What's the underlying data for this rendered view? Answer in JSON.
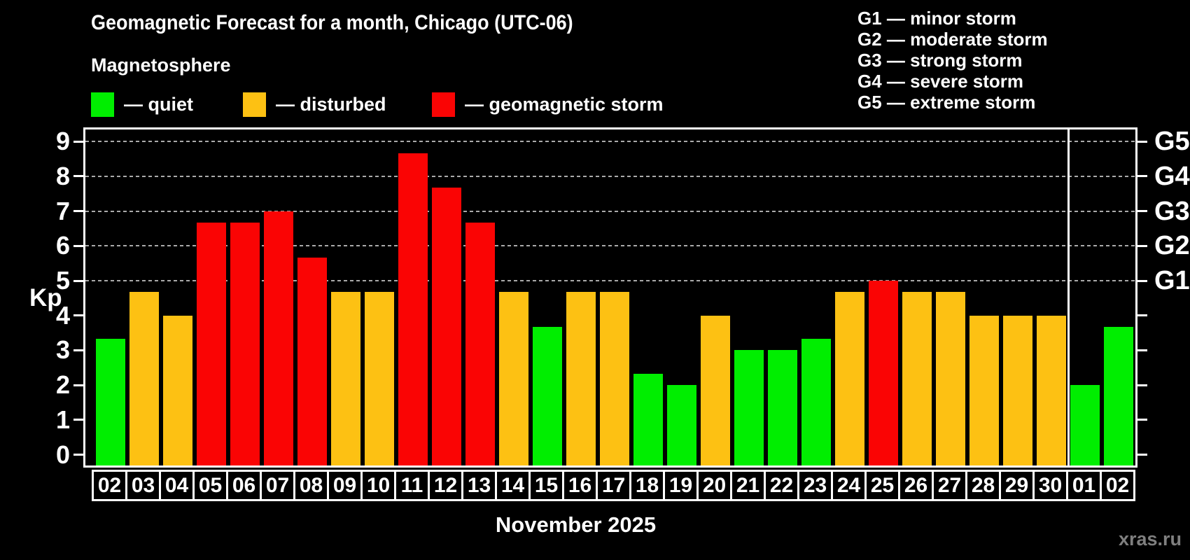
{
  "title": "Geomagnetic Forecast for a month, Chicago (UTC-06)",
  "subtitle": "Magnetosphere",
  "legend": {
    "items": [
      {
        "name": "quiet",
        "label": "— quiet",
        "color": "#00ee00"
      },
      {
        "name": "disturbed",
        "label": "— disturbed",
        "color": "#fdc113"
      },
      {
        "name": "storm",
        "label": "— geomagnetic storm",
        "color": "#fa0404"
      }
    ]
  },
  "storm_scale_legend": [
    "G1 — minor storm",
    "G2 — moderate storm",
    "G3 — strong storm",
    "G4 — severe storm",
    "G5 — extreme storm"
  ],
  "axes": {
    "y_label": "Kp",
    "y_ticks": [
      0,
      1,
      2,
      3,
      4,
      5,
      6,
      7,
      8,
      9
    ],
    "right_labels": [
      {
        "kp": 5,
        "label": "G1"
      },
      {
        "kp": 6,
        "label": "G2"
      },
      {
        "kp": 7,
        "label": "G3"
      },
      {
        "kp": 8,
        "label": "G4"
      },
      {
        "kp": 9,
        "label": "G5"
      }
    ],
    "x_label": "November 2025"
  },
  "watermark": "xras.ru",
  "colors": {
    "background": "#000000",
    "frame": "#ffffff",
    "grid": "#aaaaaa",
    "text": "#ffffff",
    "watermark": "#7f7f7f"
  },
  "chart_data": {
    "type": "bar",
    "title": "Geomagnetic Forecast for a month, Chicago (UTC-06)",
    "subtitle": "Magnetosphere",
    "xlabel": "November 2025",
    "ylabel": "Kp",
    "ylim": [
      -0.31,
      9.34
    ],
    "grid": "dashed horizontal at Kp 5-9",
    "gridlines_kp": [
      5,
      6,
      7,
      8,
      9
    ],
    "month_separator_after_index": 28,
    "categories": [
      "02",
      "03",
      "04",
      "05",
      "06",
      "07",
      "08",
      "09",
      "10",
      "11",
      "12",
      "13",
      "14",
      "15",
      "16",
      "17",
      "18",
      "19",
      "20",
      "21",
      "22",
      "23",
      "24",
      "25",
      "26",
      "27",
      "28",
      "29",
      "30",
      "01",
      "02"
    ],
    "values": [
      3.33,
      4.67,
      4.0,
      6.67,
      6.67,
      7.0,
      5.67,
      4.67,
      4.67,
      8.67,
      7.67,
      6.67,
      4.67,
      3.67,
      4.67,
      4.67,
      2.33,
      2.0,
      4.0,
      3.0,
      3.0,
      3.33,
      4.67,
      5.0,
      4.67,
      4.67,
      4.0,
      4.0,
      4.0,
      2.0,
      3.67
    ],
    "statuses": [
      "quiet",
      "disturbed",
      "disturbed",
      "storm",
      "storm",
      "storm",
      "storm",
      "disturbed",
      "disturbed",
      "storm",
      "storm",
      "storm",
      "disturbed",
      "quiet",
      "disturbed",
      "disturbed",
      "quiet",
      "quiet",
      "disturbed",
      "quiet",
      "quiet",
      "quiet",
      "disturbed",
      "storm",
      "disturbed",
      "disturbed",
      "disturbed",
      "disturbed",
      "disturbed",
      "quiet",
      "quiet"
    ]
  }
}
